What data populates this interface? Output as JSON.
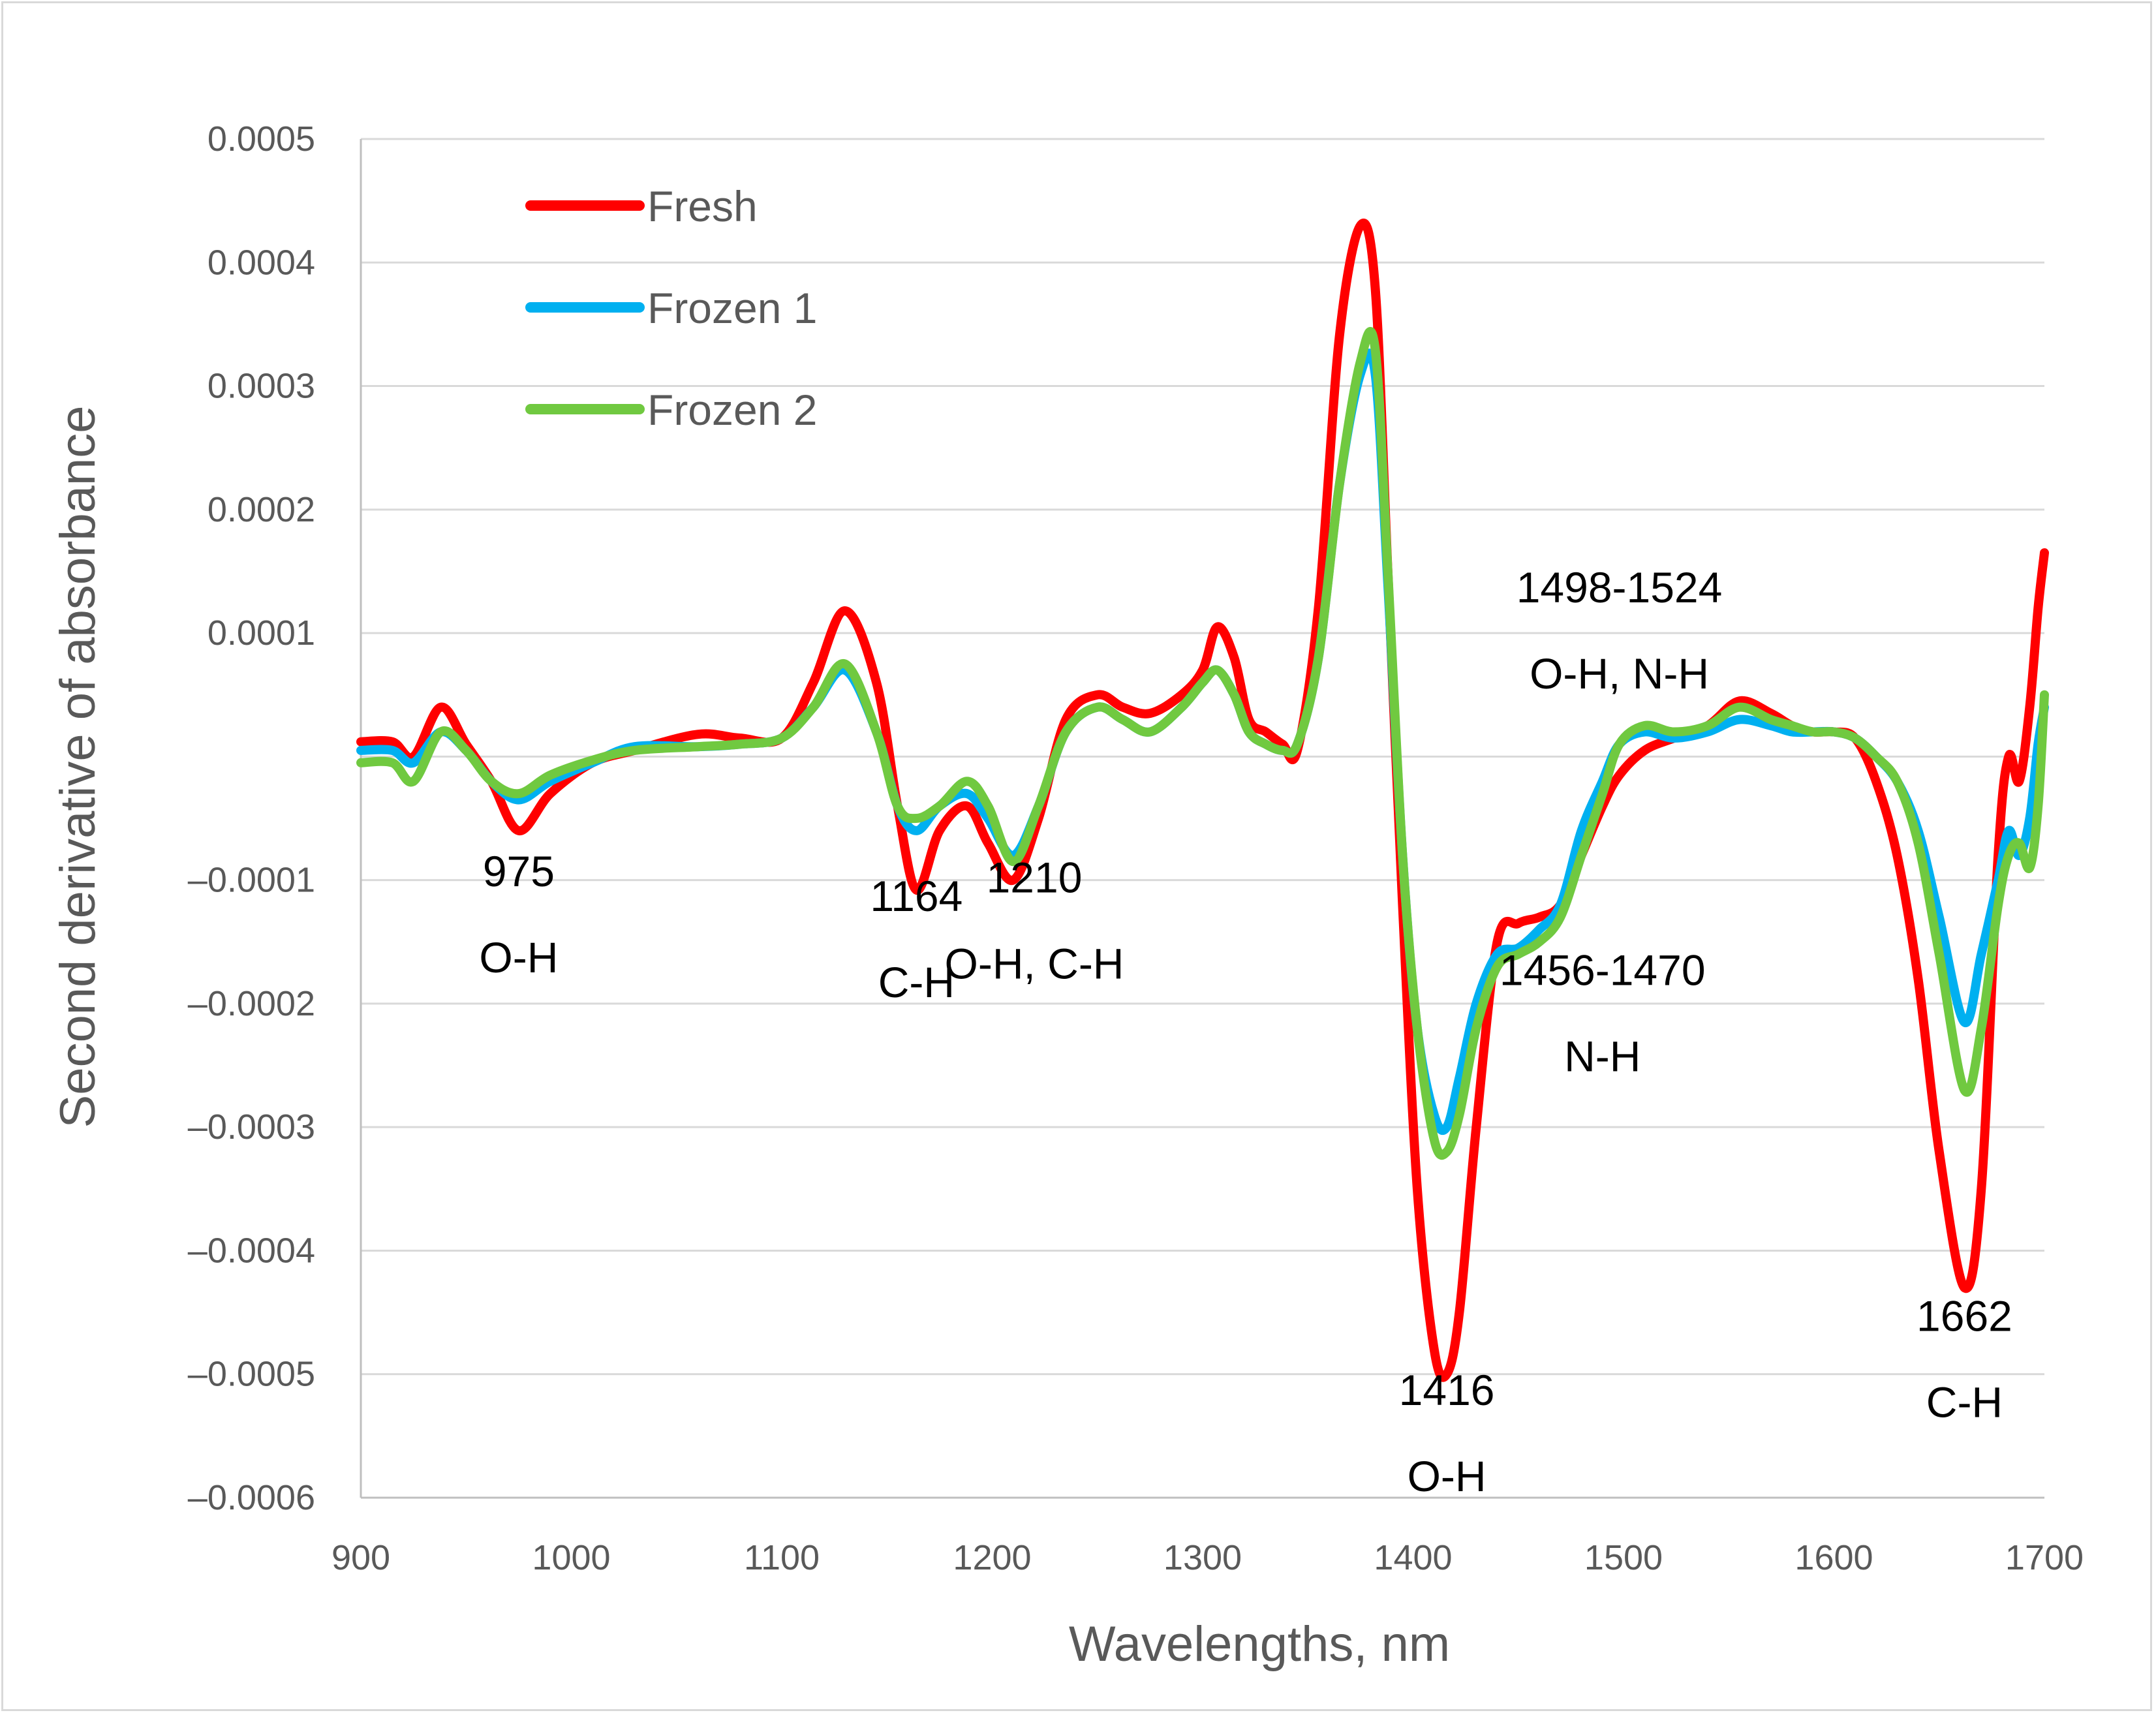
{
  "chart_data": {
    "type": "line",
    "xlabel": "Wavelengths, nm",
    "ylabel": "Second derivative of absorbance",
    "xlim": [
      900,
      1700
    ],
    "ylim": [
      -0.0006,
      0.0005
    ],
    "x_ticks": [
      "900",
      "1000",
      "1100",
      "1200",
      "1300",
      "1400",
      "1500",
      "1600",
      "1700"
    ],
    "y_ticks": [
      "0.0005",
      "0.0004",
      "0.0003",
      "0.0002",
      "0.0001",
      "",
      "–0.0001",
      "–0.0002",
      "–0.0003",
      "–0.0004",
      "–0.0005",
      "–0.0006"
    ],
    "grid": "horizontal",
    "legend_position": "top-left",
    "series": [
      {
        "name": "Fresh",
        "color": "#ff0000",
        "x": [
          900,
          915,
          925,
          938,
          950,
          962,
          975,
          990,
          1010,
          1030,
          1060,
          1080,
          1100,
          1115,
          1130,
          1145,
          1155,
          1164,
          1175,
          1188,
          1198,
          1210,
          1222,
          1235,
          1250,
          1262,
          1275,
          1290,
          1300,
          1307,
          1315,
          1322,
          1330,
          1338,
          1345,
          1355,
          1365,
          1375,
          1382,
          1388,
          1395,
          1402,
          1410,
          1416,
          1422,
          1430,
          1440,
          1450,
          1460,
          1470,
          1480,
          1490,
          1498,
          1510,
          1524,
          1540,
          1555,
          1570,
          1580,
          1590,
          1600,
          1610,
          1620,
          1630,
          1640,
          1650,
          1662,
          1670,
          1678,
          1683,
          1688,
          1693,
          1697,
          1700
        ],
        "y": [
          1.2e-05,
          1.2e-05,
          0.0,
          4e-05,
          1e-05,
          -2e-05,
          -6e-05,
          -3e-05,
          -5e-06,
          5e-06,
          1.8e-05,
          1.5e-05,
          1.5e-05,
          6e-05,
          0.000118,
          6e-05,
          -4e-05,
          -0.000108,
          -6e-05,
          -4e-05,
          -7e-05,
          -0.0001,
          -5e-05,
          3e-05,
          5e-05,
          4e-05,
          3.5e-05,
          5e-05,
          7e-05,
          0.000105,
          8e-05,
          3e-05,
          2e-05,
          1e-05,
          5e-06,
          0.00012,
          0.00034,
          0.00043,
          0.00038,
          0.00015,
          -0.00012,
          -0.00035,
          -0.00048,
          -0.0005,
          -0.00045,
          -0.0003,
          -0.00015,
          -0.000135,
          -0.00013,
          -0.00012,
          -8e-05,
          -4e-05,
          -1.5e-05,
          5e-06,
          1.5e-05,
          2.5e-05,
          4.5e-05,
          3.5e-05,
          2.5e-05,
          2e-05,
          2e-05,
          1.5e-05,
          -2e-05,
          -8e-05,
          -0.00018,
          -0.00032,
          -0.00043,
          -0.00035,
          -8e-05,
          0.0,
          -2e-05,
          4e-05,
          0.00012,
          0.000165
        ]
      },
      {
        "name": "Frozen 1",
        "color": "#00b0f0",
        "x": [
          900,
          915,
          925,
          938,
          950,
          962,
          975,
          990,
          1010,
          1030,
          1060,
          1080,
          1100,
          1115,
          1130,
          1145,
          1155,
          1164,
          1175,
          1188,
          1198,
          1210,
          1222,
          1235,
          1250,
          1262,
          1275,
          1290,
          1300,
          1307,
          1315,
          1322,
          1330,
          1338,
          1345,
          1355,
          1365,
          1375,
          1382,
          1388,
          1395,
          1402,
          1410,
          1416,
          1422,
          1430,
          1440,
          1450,
          1460,
          1470,
          1480,
          1490,
          1498,
          1510,
          1524,
          1540,
          1555,
          1570,
          1580,
          1590,
          1600,
          1610,
          1620,
          1630,
          1640,
          1650,
          1662,
          1670,
          1678,
          1683,
          1688,
          1693,
          1697,
          1700
        ],
        "y": [
          5e-06,
          5e-06,
          -5e-06,
          2e-05,
          5e-06,
          -2e-05,
          -3.5e-05,
          -2e-05,
          -5e-06,
          8e-06,
          8e-06,
          1e-05,
          1.5e-05,
          4e-05,
          7e-05,
          2e-05,
          -4e-05,
          -6e-05,
          -4e-05,
          -3e-05,
          -5e-05,
          -8e-05,
          -4e-05,
          2e-05,
          4e-05,
          3e-05,
          2e-05,
          4e-05,
          6e-05,
          7e-05,
          5e-05,
          2e-05,
          1e-05,
          5e-06,
          1e-05,
          8e-05,
          0.00022,
          0.00031,
          0.00031,
          0.00014,
          -8e-05,
          -0.00022,
          -0.00029,
          -0.0003,
          -0.00026,
          -0.0002,
          -0.00016,
          -0.000155,
          -0.00014,
          -0.00012,
          -6e-05,
          -2e-05,
          1e-05,
          2e-05,
          1.5e-05,
          2e-05,
          3e-05,
          2.5e-05,
          2e-05,
          2e-05,
          2e-05,
          1.5e-05,
          0.0,
          -2e-05,
          -6e-05,
          -0.00013,
          -0.000215,
          -0.00016,
          -0.0001,
          -6e-05,
          -8e-05,
          -5e-05,
          1e-05,
          4e-05
        ]
      },
      {
        "name": "Frozen 2",
        "color": "#70c940",
        "x": [
          900,
          915,
          925,
          938,
          950,
          962,
          975,
          990,
          1010,
          1030,
          1060,
          1080,
          1100,
          1115,
          1130,
          1145,
          1155,
          1164,
          1175,
          1188,
          1198,
          1210,
          1222,
          1235,
          1250,
          1262,
          1275,
          1290,
          1300,
          1307,
          1315,
          1322,
          1330,
          1338,
          1345,
          1355,
          1365,
          1375,
          1382,
          1388,
          1395,
          1402,
          1410,
          1416,
          1422,
          1430,
          1440,
          1450,
          1460,
          1470,
          1480,
          1490,
          1498,
          1510,
          1524,
          1540,
          1555,
          1570,
          1580,
          1590,
          1600,
          1610,
          1620,
          1630,
          1640,
          1650,
          1662,
          1670,
          1678,
          1683,
          1688,
          1693,
          1697,
          1700
        ],
        "y": [
          -5e-06,
          -5e-06,
          -2e-05,
          2e-05,
          5e-06,
          -2e-05,
          -3e-05,
          -1.5e-05,
          -3e-06,
          5e-06,
          8e-06,
          1e-05,
          1.5e-05,
          4e-05,
          7.5e-05,
          2e-05,
          -4e-05,
          -5e-05,
          -4e-05,
          -2e-05,
          -4e-05,
          -8.5e-05,
          -4e-05,
          2e-05,
          4e-05,
          3e-05,
          2e-05,
          4e-05,
          6e-05,
          7e-05,
          5e-05,
          2e-05,
          1e-05,
          5e-06,
          1e-05,
          8e-05,
          0.00022,
          0.00032,
          0.00033,
          0.00015,
          -8e-05,
          -0.00022,
          -0.00031,
          -0.00032,
          -0.00029,
          -0.00022,
          -0.00017,
          -0.00016,
          -0.00015,
          -0.00013,
          -8e-05,
          -3e-05,
          1e-05,
          2.5e-05,
          2e-05,
          2.5e-05,
          4e-05,
          3e-05,
          2.5e-05,
          2e-05,
          2e-05,
          1.5e-05,
          0.0,
          -2e-05,
          -7e-05,
          -0.00016,
          -0.00027,
          -0.00022,
          -0.00012,
          -8e-05,
          -7e-05,
          -9e-05,
          -4e-05,
          5e-05
        ]
      }
    ],
    "annotations": [
      {
        "lines": [
          "975",
          "O-H"
        ],
        "x": 975,
        "y": -0.000105
      },
      {
        "lines": [
          "1164",
          "C-H"
        ],
        "x": 1164,
        "y": -0.000125
      },
      {
        "lines": [
          "1210",
          "O-H, C-H"
        ],
        "x": 1220,
        "y": -0.00011
      },
      {
        "lines": [
          "1416",
          "O-H"
        ],
        "x": 1416,
        "y": -0.000525
      },
      {
        "lines": [
          "1456-1470",
          "N-H"
        ],
        "x": 1490,
        "y": -0.000185
      },
      {
        "lines": [
          "1498-1524",
          "O-H, N-H"
        ],
        "x": 1498,
        "y": 0.000125
      },
      {
        "lines": [
          "1662",
          "C-H"
        ],
        "x": 1662,
        "y": -0.000465
      }
    ]
  }
}
